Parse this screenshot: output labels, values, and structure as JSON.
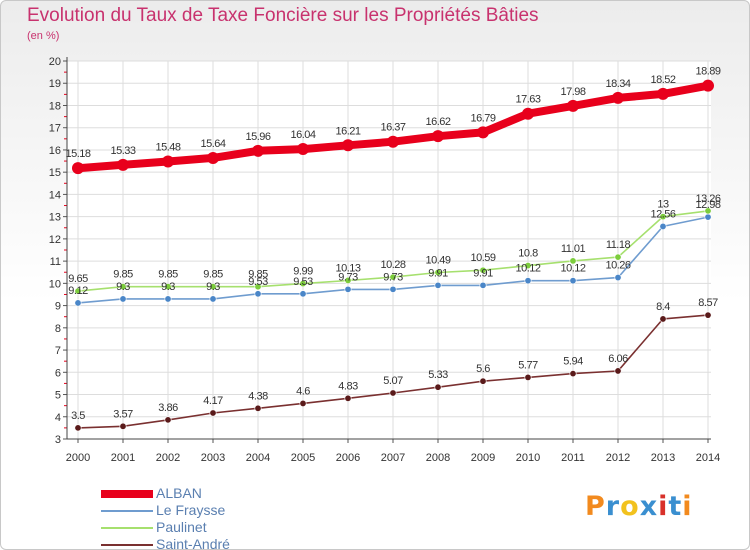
{
  "title": "Evolution du Taux de Taxe Foncière sur les Propriétés Bâties",
  "subtitle": "(en %)",
  "brand": {
    "letters": [
      "P",
      "r",
      "o",
      "x",
      "i",
      "t",
      "i"
    ],
    "colors": [
      "#f28a1e",
      "#3a8fd0",
      "#f2c21e",
      "#3a8fd0",
      "#d8312a",
      "#3a8fd0",
      "#f28a1e"
    ]
  },
  "chart_data": {
    "type": "line",
    "title": "Evolution du Taux de Taxe Foncière sur les Propriétés Bâties",
    "ylabel": "(en %)",
    "xlabel": "",
    "x": [
      "2000",
      "2001",
      "2002",
      "2003",
      "2004",
      "2005",
      "2006",
      "2007",
      "2008",
      "2009",
      "2010",
      "2011",
      "2012",
      "2013",
      "2014"
    ],
    "ylim": [
      3,
      20
    ],
    "yticks": [
      "3",
      "4",
      "5",
      "6",
      "7",
      "8",
      "9",
      "10",
      "11",
      "12",
      "13",
      "14",
      "15",
      "16",
      "17",
      "18",
      "19",
      "20"
    ],
    "grid": true,
    "legend_position": "bottom-left",
    "series": [
      {
        "name": "ALBAN",
        "color": "#e8001c",
        "marker": "#e8001c",
        "emphasis": true,
        "values": [
          15.18,
          15.33,
          15.48,
          15.64,
          15.96,
          16.04,
          16.21,
          16.37,
          16.62,
          16.79,
          17.63,
          17.98,
          18.34,
          18.52,
          18.89
        ],
        "labels": [
          "15.18",
          "15.33",
          "15.48",
          "15.64",
          "15.96",
          "16.04",
          "16.21",
          "16.37",
          "16.62",
          "16.79",
          "17.63",
          "17.98",
          "18.34",
          "18.52",
          "18.89"
        ]
      },
      {
        "name": "Le Fraysse",
        "color": "#6f9ccf",
        "marker": "#4a86c8",
        "emphasis": false,
        "values": [
          9.12,
          9.3,
          9.3,
          9.3,
          9.53,
          9.53,
          9.73,
          9.73,
          9.91,
          9.91,
          10.12,
          10.12,
          10.26,
          12.56,
          12.98
        ],
        "labels": [
          "9.12",
          "9.3",
          "9.3",
          "9.3",
          "9.53",
          "9.53",
          "9.73",
          "9.73",
          "9.91",
          "9.91",
          "10.12",
          "10.12",
          "10.26",
          "12.56",
          "12.98"
        ]
      },
      {
        "name": "Paulinet",
        "color": "#a6e06e",
        "marker": "#7ccd3c",
        "emphasis": false,
        "values": [
          9.65,
          9.85,
          9.85,
          9.85,
          9.85,
          9.99,
          10.13,
          10.28,
          10.49,
          10.59,
          10.8,
          11.01,
          11.18,
          13.0,
          13.26
        ],
        "labels": [
          "9.65",
          "9.85",
          "9.85",
          "9.85",
          "9.85",
          "9.99",
          "10.13",
          "10.28",
          "10.49",
          "10.59",
          "10.8",
          "11.01",
          "11.18",
          "13",
          "13.26"
        ]
      },
      {
        "name": "Saint-André",
        "color": "#7a3030",
        "marker": "#5a1a1a",
        "emphasis": false,
        "values": [
          3.5,
          3.57,
          3.86,
          4.17,
          4.38,
          4.6,
          4.83,
          5.07,
          5.33,
          5.6,
          5.77,
          5.94,
          6.06,
          8.4,
          8.57
        ],
        "labels": [
          "3.5",
          "3.57",
          "3.86",
          "4.17",
          "4.38",
          "4.6",
          "4.83",
          "5.07",
          "5.33",
          "5.6",
          "5.77",
          "5.94",
          "6.06",
          "8.4",
          "8.57"
        ]
      }
    ]
  }
}
